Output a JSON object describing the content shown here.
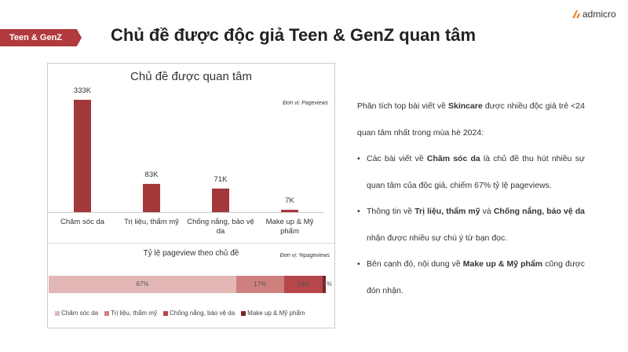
{
  "header": {
    "badge": "Teen & GenZ",
    "title": "Chủ đề được độc giả Teen & GenZ quan tâm",
    "logo": "admicro"
  },
  "chart_data": [
    {
      "type": "bar",
      "title": "Chủ đề được quan tâm",
      "unit_note": "Đơn vị: Pageviews",
      "categories": [
        "Chăm sóc da",
        "Trị liệu, thẩm mỹ",
        "Chống nắng, bảo vệ da",
        "Make up & Mỹ phẩm"
      ],
      "values": [
        333000,
        83000,
        71000,
        7000
      ],
      "value_labels": [
        "333K",
        "83K",
        "71K",
        "7K"
      ],
      "color": "#a3383b"
    },
    {
      "type": "stacked_hbar",
      "title": "Tỷ lệ pageview theo chủ đề",
      "unit_note": "Đơn vị: %pageviews",
      "legend": "bottom",
      "series": [
        {
          "name": "Chăm sóc da",
          "color": "#e2b7b6",
          "values": [
            67
          ],
          "value_labels": [
            "67%"
          ]
        },
        {
          "name": "Trị liệu, thẩm mỹ",
          "color": "#d07f7f",
          "values": [
            17
          ],
          "value_labels": [
            "17%"
          ]
        },
        {
          "name": "Chống nắng, bảo vệ da",
          "color": "#b5474a",
          "values": [
            14
          ],
          "value_labels": [
            "14%"
          ]
        },
        {
          "name": "Make up & Mỹ phẩm",
          "color": "#7a2326",
          "values": [
            1
          ],
          "value_labels": [
            "1%"
          ]
        }
      ]
    }
  ],
  "analysis": {
    "intro": [
      {
        "text": "Phân tích top bài viết về "
      },
      {
        "text": "Skincare",
        "bold": true
      },
      {
        "text": " được nhiều độc giả trẻ <24 quan tâm nhất trong mùa hè 2024:"
      }
    ],
    "bullets": [
      [
        {
          "text": "Các bài viết về "
        },
        {
          "text": "Chăm sóc da",
          "bold": true
        },
        {
          "text": " là chủ đề thu hút nhiều sự quan tâm của độc giả, chiếm 67% tỷ lệ pageviews."
        }
      ],
      [
        {
          "text": "Thông tin về "
        },
        {
          "text": "Trị liệu, thẩm mỹ",
          "bold": true
        },
        {
          "text": " và "
        },
        {
          "text": "Chống nắng, bảo vệ da",
          "bold": true
        },
        {
          "text": " nhận được nhiều sự chú ý từ bạn đọc."
        }
      ],
      [
        {
          "text": "Bên cạnh đó, nội dung về "
        },
        {
          "text": "Make up & Mỹ phẩm",
          "bold": true
        },
        {
          "text": " cũng được đón nhận."
        }
      ]
    ]
  }
}
